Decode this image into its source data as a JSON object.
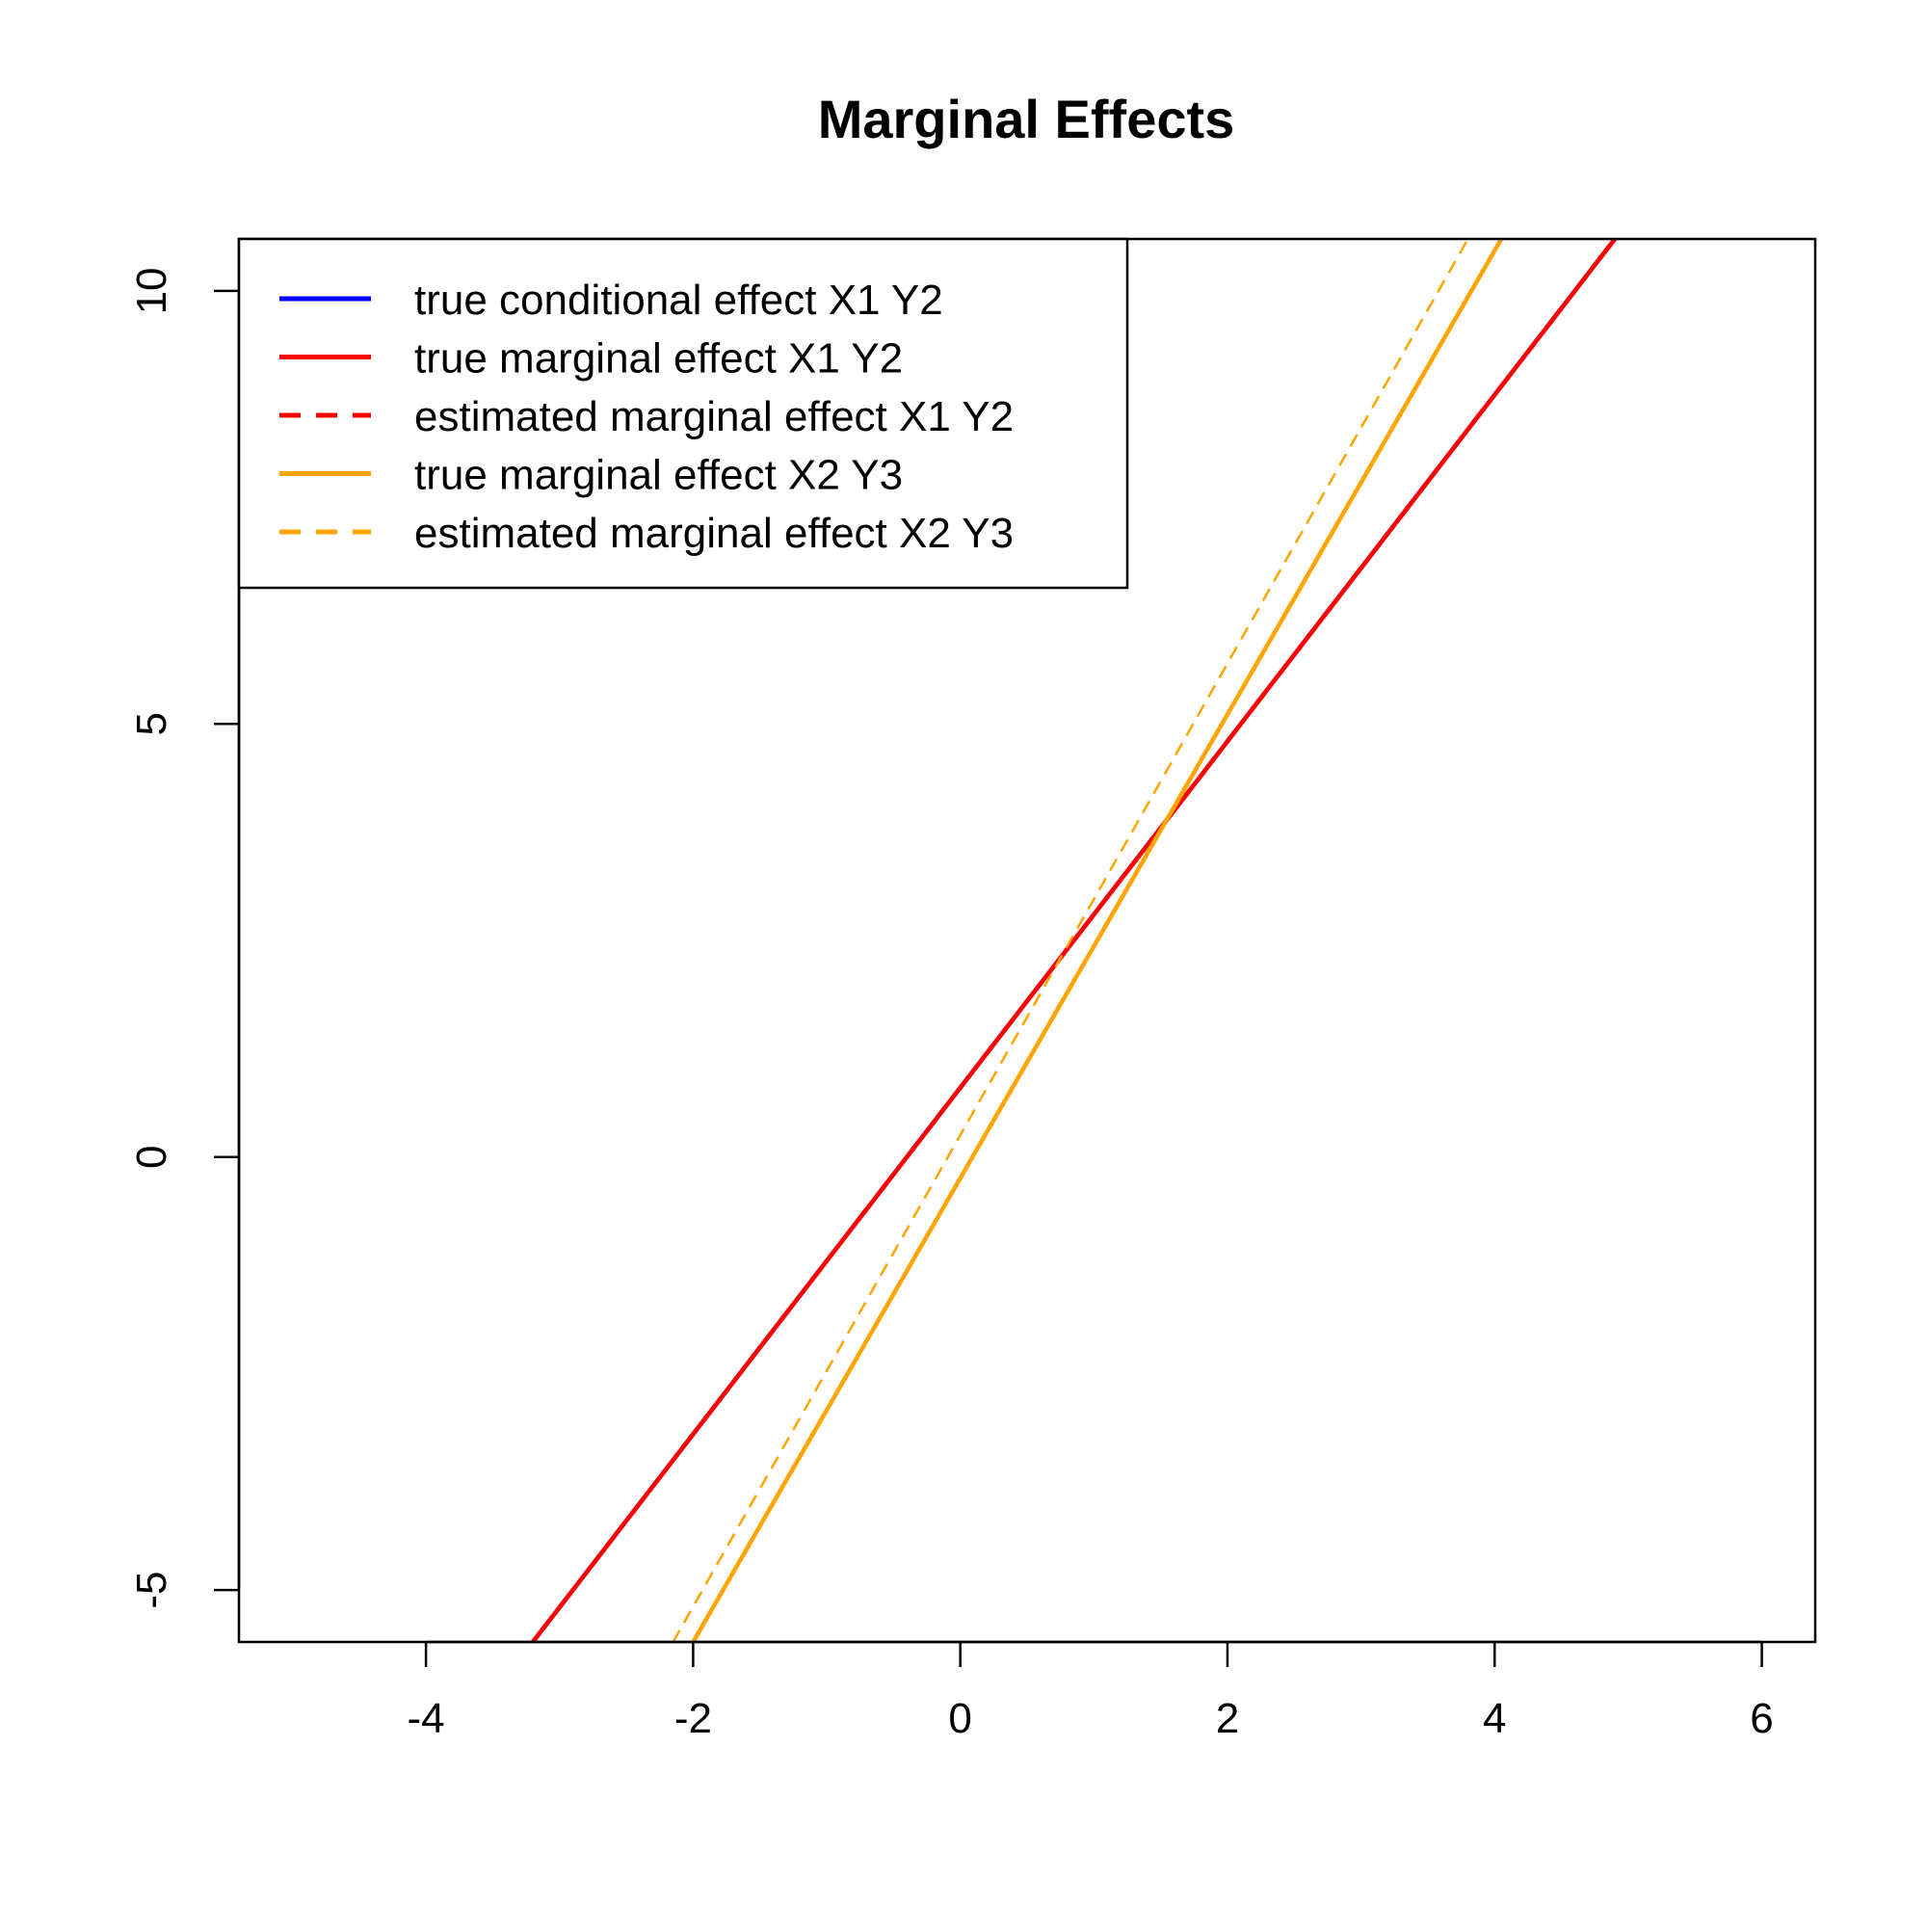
{
  "chart_data": {
    "type": "line",
    "title": "Marginal Effects",
    "xlabel": "",
    "ylabel": "",
    "xlim": [
      -5.4,
      6.4
    ],
    "ylim": [
      -5.6,
      10.6
    ],
    "x_ticks": [
      -4,
      -2,
      0,
      2,
      4,
      6
    ],
    "y_ticks": [
      -5,
      0,
      5,
      10
    ],
    "grid": false,
    "legend_position": "top-left",
    "series": [
      {
        "name": "true conditional effect X1 Y2",
        "color": "#0000FF",
        "dash": "solid",
        "x": [
          -3.2,
          4.9
        ],
        "y": [
          -5.6,
          10.6
        ]
      },
      {
        "name": "true marginal effect X1 Y2",
        "color": "#FF0000",
        "dash": "solid",
        "x": [
          -3.2,
          4.9
        ],
        "y": [
          -5.6,
          10.6
        ]
      },
      {
        "name": "estimated marginal effect X1 Y2",
        "color": "#FF0000",
        "dash": "dashed",
        "x": [
          -3.2,
          4.9
        ],
        "y": [
          -5.6,
          10.6
        ]
      },
      {
        "name": "true marginal effect X2 Y3",
        "color": "#FFA500",
        "dash": "solid",
        "x": [
          -2.0,
          4.05
        ],
        "y": [
          -5.6,
          10.6
        ]
      },
      {
        "name": "estimated marginal effect X2 Y3",
        "color": "#FFA500",
        "dash": "dashed-thin",
        "x": [
          -2.15,
          3.8
        ],
        "y": [
          -5.6,
          10.6
        ]
      }
    ]
  }
}
